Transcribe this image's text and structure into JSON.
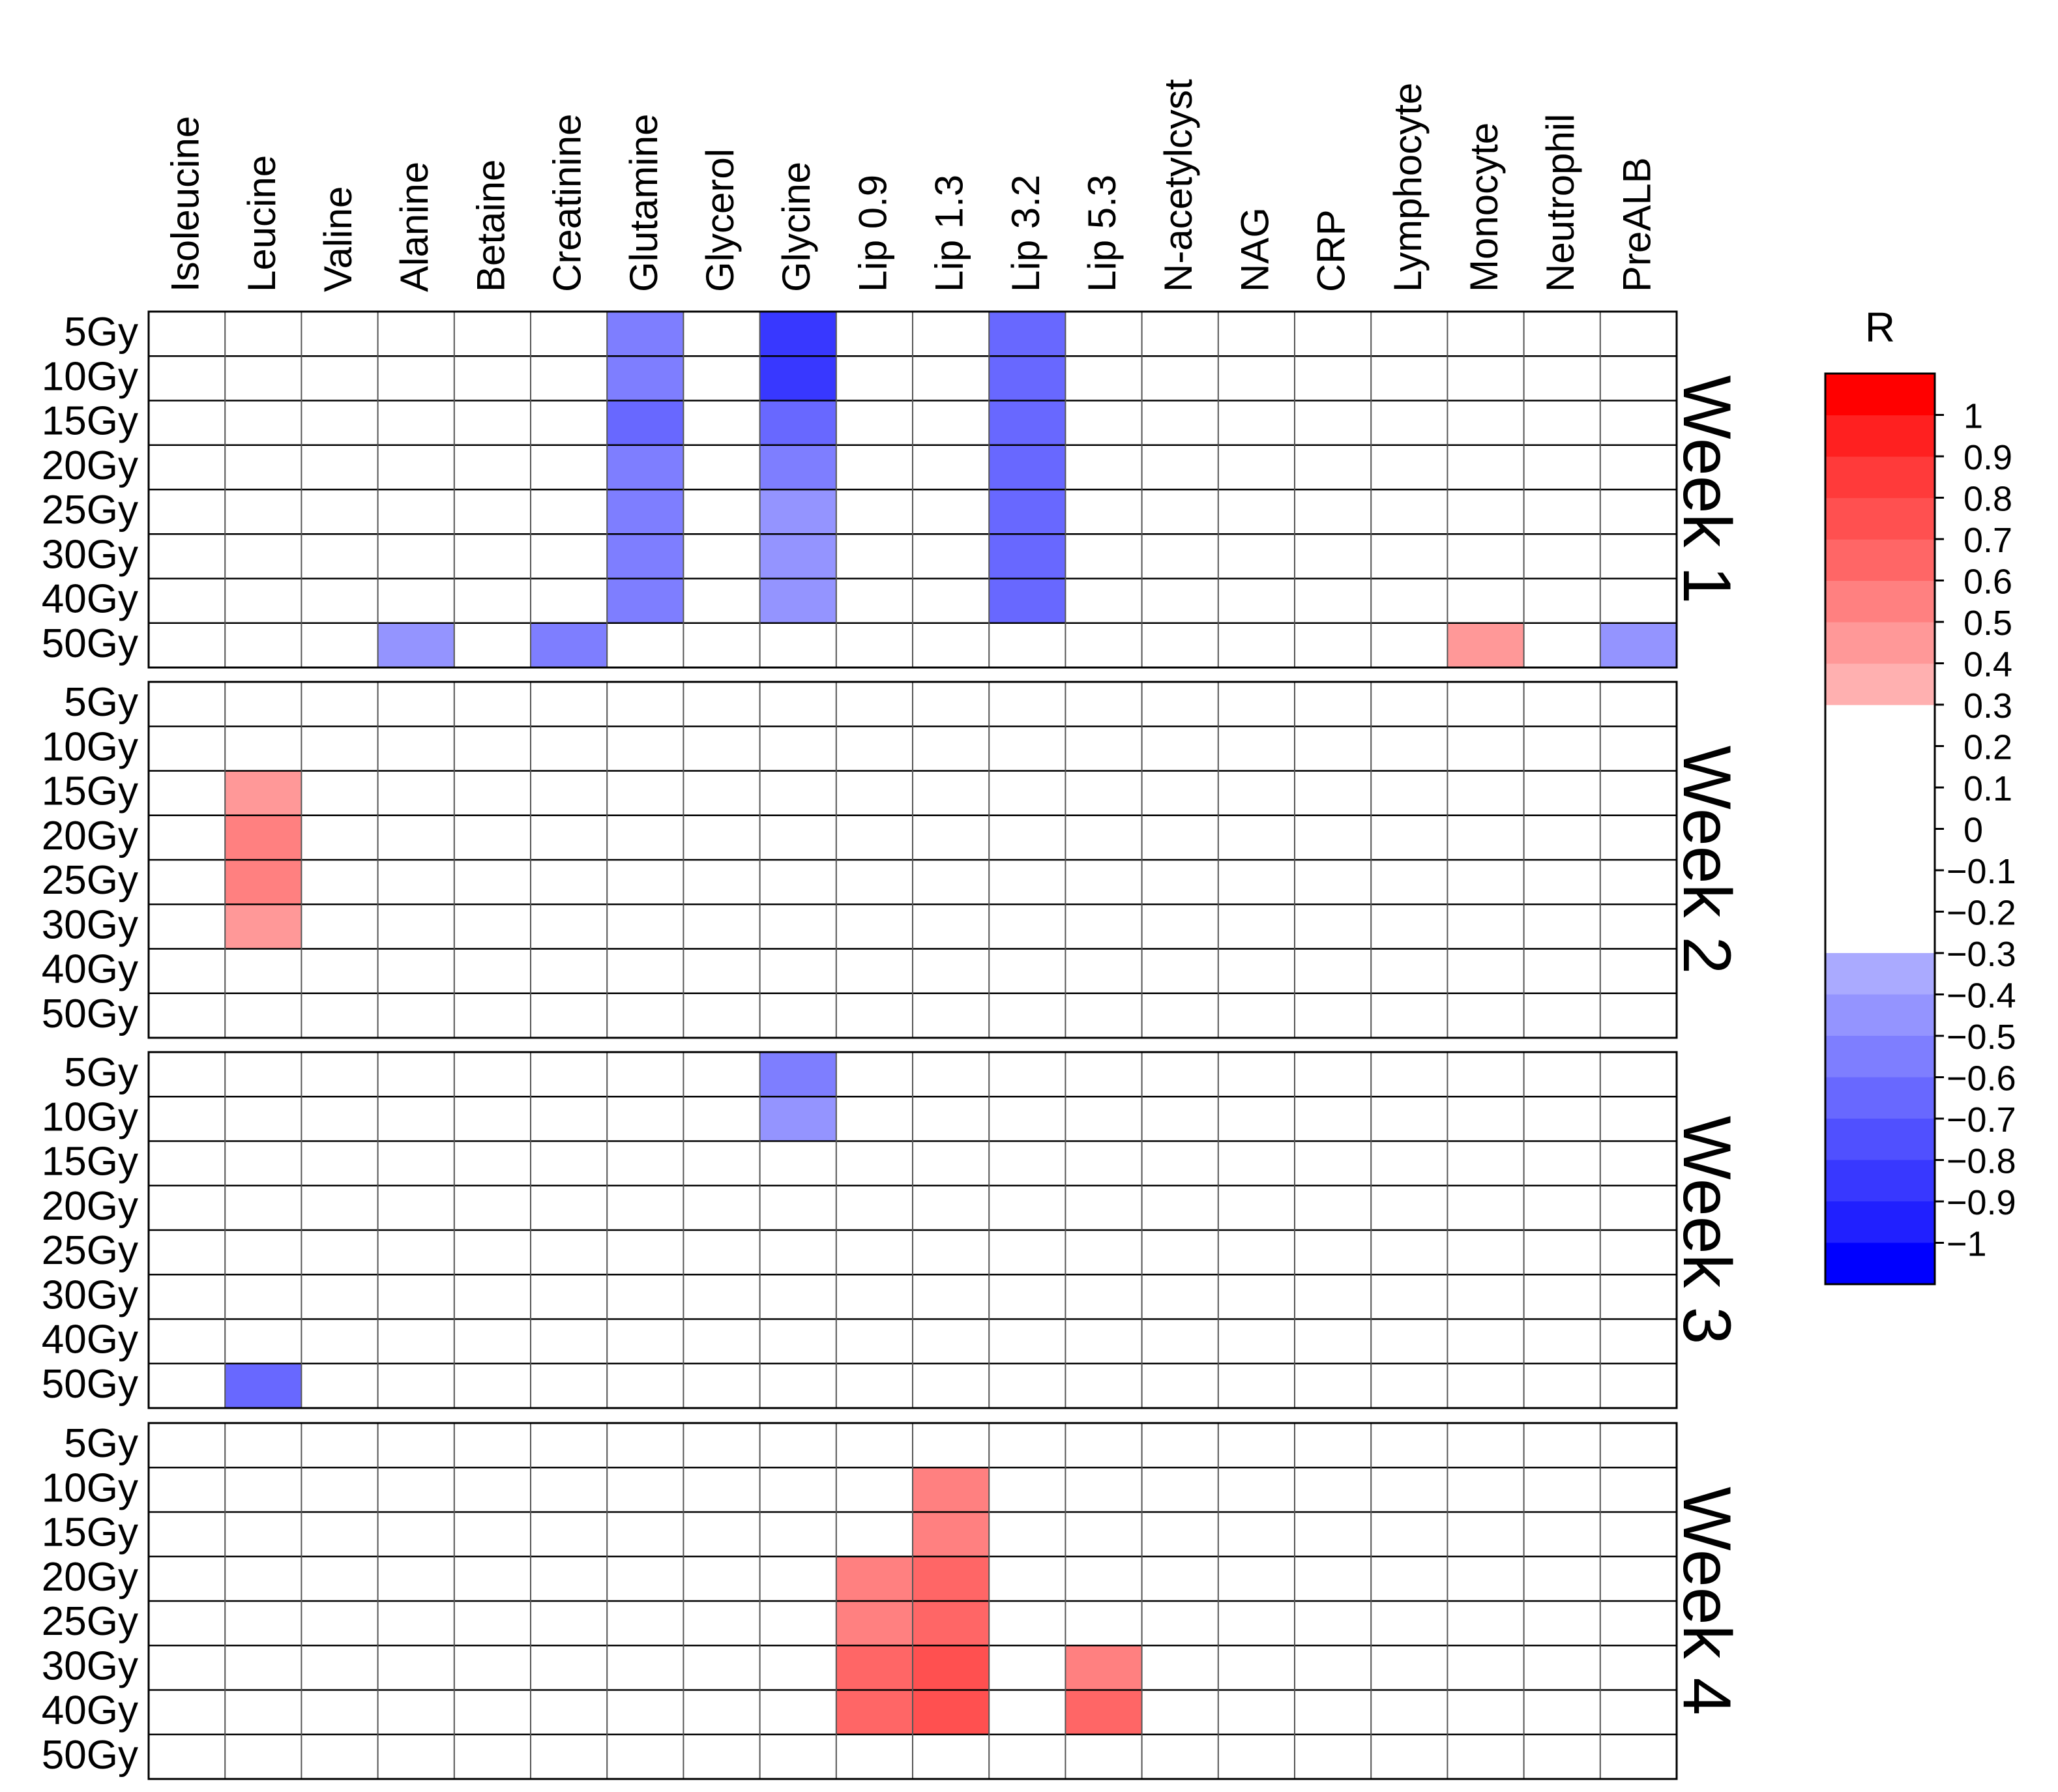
{
  "chart_data": {
    "type": "heatmap",
    "columns": [
      "Isoleucine",
      "Leucine",
      "Valine",
      "Alanine",
      "Betaine",
      "Creatinine",
      "Glutamine",
      "Glycerol",
      "Glycine",
      "Lip 0.9",
      "Lip 1.3",
      "Lip 3.2",
      "Lip 5.3",
      "N-acetylcyst",
      "NAG",
      "CRP",
      "Lymphocyte",
      "Monocyte",
      "Neutrophil",
      "PreALB"
    ],
    "rows": [
      "5Gy",
      "10Gy",
      "15Gy",
      "20Gy",
      "25Gy",
      "30Gy",
      "40Gy",
      "50Gy"
    ],
    "panels": [
      {
        "label": "Week 1",
        "cells": [
          {
            "row": 0,
            "col": 6,
            "r": -0.6
          },
          {
            "row": 1,
            "col": 6,
            "r": -0.6
          },
          {
            "row": 2,
            "col": 6,
            "r": -0.7
          },
          {
            "row": 3,
            "col": 6,
            "r": -0.6
          },
          {
            "row": 4,
            "col": 6,
            "r": -0.6
          },
          {
            "row": 5,
            "col": 6,
            "r": -0.6
          },
          {
            "row": 6,
            "col": 6,
            "r": -0.6
          },
          {
            "row": 0,
            "col": 8,
            "r": -0.9
          },
          {
            "row": 1,
            "col": 8,
            "r": -0.9
          },
          {
            "row": 2,
            "col": 8,
            "r": -0.7
          },
          {
            "row": 3,
            "col": 8,
            "r": -0.6
          },
          {
            "row": 4,
            "col": 8,
            "r": -0.5
          },
          {
            "row": 5,
            "col": 8,
            "r": -0.5
          },
          {
            "row": 6,
            "col": 8,
            "r": -0.5
          },
          {
            "row": 0,
            "col": 11,
            "r": -0.7
          },
          {
            "row": 1,
            "col": 11,
            "r": -0.7
          },
          {
            "row": 2,
            "col": 11,
            "r": -0.7
          },
          {
            "row": 3,
            "col": 11,
            "r": -0.7
          },
          {
            "row": 4,
            "col": 11,
            "r": -0.7
          },
          {
            "row": 5,
            "col": 11,
            "r": -0.7
          },
          {
            "row": 6,
            "col": 11,
            "r": -0.7
          },
          {
            "row": 7,
            "col": 3,
            "r": -0.5
          },
          {
            "row": 7,
            "col": 5,
            "r": -0.6
          },
          {
            "row": 7,
            "col": 17,
            "r": 0.5
          },
          {
            "row": 7,
            "col": 19,
            "r": -0.5
          }
        ]
      },
      {
        "label": "Week 2",
        "cells": [
          {
            "row": 2,
            "col": 1,
            "r": 0.5
          },
          {
            "row": 3,
            "col": 1,
            "r": 0.6
          },
          {
            "row": 4,
            "col": 1,
            "r": 0.6
          },
          {
            "row": 5,
            "col": 1,
            "r": 0.5
          }
        ]
      },
      {
        "label": "Week 3",
        "cells": [
          {
            "row": 0,
            "col": 8,
            "r": -0.6
          },
          {
            "row": 1,
            "col": 8,
            "r": -0.5
          },
          {
            "row": 7,
            "col": 1,
            "r": -0.7
          }
        ]
      },
      {
        "label": "Week 4",
        "cells": [
          {
            "row": 1,
            "col": 10,
            "r": 0.6
          },
          {
            "row": 2,
            "col": 10,
            "r": 0.6
          },
          {
            "row": 3,
            "col": 10,
            "r": 0.7
          },
          {
            "row": 4,
            "col": 10,
            "r": 0.7
          },
          {
            "row": 5,
            "col": 10,
            "r": 0.8
          },
          {
            "row": 6,
            "col": 10,
            "r": 0.8
          },
          {
            "row": 3,
            "col": 9,
            "r": 0.6
          },
          {
            "row": 4,
            "col": 9,
            "r": 0.6
          },
          {
            "row": 5,
            "col": 9,
            "r": 0.7
          },
          {
            "row": 6,
            "col": 9,
            "r": 0.7
          },
          {
            "row": 5,
            "col": 12,
            "r": 0.6
          },
          {
            "row": 6,
            "col": 12,
            "r": 0.7
          }
        ]
      }
    ],
    "legend": {
      "title": "R",
      "ticks": [
        "1",
        "0.9",
        "0.8",
        "0.7",
        "0.6",
        "0.5",
        "0.4",
        "0.3",
        "0.2",
        "0.1",
        "0",
        "−0.1",
        "−0.2",
        "−0.3",
        "−0.4",
        "−0.5",
        "−0.6",
        "−0.7",
        "−0.8",
        "−0.9",
        "−1"
      ],
      "tick_values": [
        1,
        0.9,
        0.8,
        0.7,
        0.6,
        0.5,
        0.4,
        0.3,
        0.2,
        0.1,
        0,
        -0.1,
        -0.2,
        -0.3,
        -0.4,
        -0.5,
        -0.6,
        -0.7,
        -0.8,
        -0.9,
        -1
      ],
      "range": [
        -1.1,
        1.1
      ],
      "steps": [
        {
          "from": 0.3,
          "to": 0.4,
          "color": "#ffb0b0"
        },
        {
          "from": 0.4,
          "to": 0.5,
          "color": "#ff9898"
        },
        {
          "from": 0.5,
          "to": 0.6,
          "color": "#ff8080"
        },
        {
          "from": 0.6,
          "to": 0.7,
          "color": "#ff6666"
        },
        {
          "from": 0.7,
          "to": 0.8,
          "color": "#ff5050"
        },
        {
          "from": 0.8,
          "to": 0.9,
          "color": "#ff3a3a"
        },
        {
          "from": 0.9,
          "to": 1.0,
          "color": "#ff2020"
        },
        {
          "from": 1.0,
          "to": 1.1,
          "color": "#ff0000"
        },
        {
          "from": -0.4,
          "to": -0.3,
          "color": "#aaaaff"
        },
        {
          "from": -0.5,
          "to": -0.4,
          "color": "#9494ff"
        },
        {
          "from": -0.6,
          "to": -0.5,
          "color": "#7e7eff"
        },
        {
          "from": -0.7,
          "to": -0.6,
          "color": "#6868ff"
        },
        {
          "from": -0.8,
          "to": -0.7,
          "color": "#5050ff"
        },
        {
          "from": -0.9,
          "to": -0.8,
          "color": "#3838ff"
        },
        {
          "from": -1.0,
          "to": -0.9,
          "color": "#2020ff"
        },
        {
          "from": -1.1,
          "to": -1.0,
          "color": "#0000ff"
        }
      ]
    }
  }
}
